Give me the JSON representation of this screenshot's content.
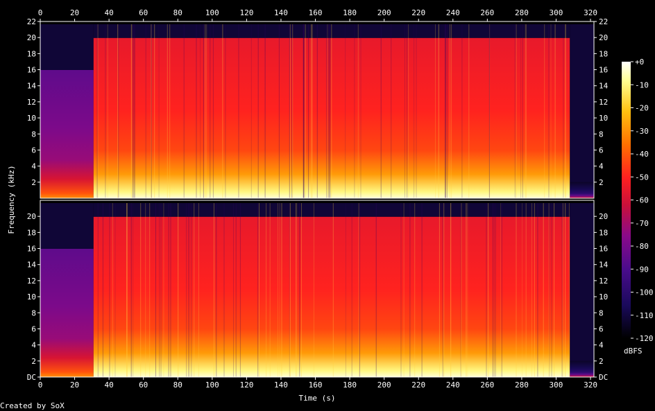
{
  "chart_data": {
    "type": "heatmap",
    "title": "",
    "xlabel": "Time (s)",
    "ylabel": "Frequency (kHz)",
    "xlim": [
      0,
      322
    ],
    "ylim_khz": [
      0,
      22.05
    ],
    "x_ticks": [
      0,
      20,
      40,
      60,
      80,
      100,
      120,
      140,
      160,
      180,
      200,
      220,
      240,
      260,
      280,
      300,
      320
    ],
    "y_ticks_upper_channel": [
      "2",
      "4",
      "6",
      "8",
      "10",
      "12",
      "14",
      "16",
      "18",
      "20",
      "22"
    ],
    "y_ticks_lower_channel": [
      "DC",
      "2",
      "4",
      "6",
      "8",
      "10",
      "12",
      "14",
      "16",
      "18",
      "20"
    ],
    "channels": 2,
    "colorbar": {
      "label": "dBFS",
      "ticks": [
        "+0",
        "-10",
        "-20",
        "-30",
        "-40",
        "-50",
        "-60",
        "-70",
        "-80",
        "-90",
        "-100",
        "-110",
        "-120"
      ],
      "range_dbfs": [
        -120,
        0
      ],
      "palette": [
        "#000000",
        "#1a0a5c",
        "#4a0c8c",
        "#8a0a8a",
        "#c8103a",
        "#ff2020",
        "#ff7000",
        "#ffc010",
        "#ffff90",
        "#ffffff"
      ]
    },
    "segments": [
      {
        "t_start": 0,
        "t_end": 31,
        "level_dbfs": -85,
        "lowpass_khz": 16
      },
      {
        "t_start": 31,
        "t_end": 308,
        "level_dbfs": -55,
        "lowpass_khz": 20
      },
      {
        "t_start": 308,
        "t_end": 322,
        "level_dbfs": -110,
        "lowpass_khz": 2
      }
    ],
    "grid": false,
    "legend": "right"
  },
  "footer": {
    "credit": "Created by SoX"
  }
}
